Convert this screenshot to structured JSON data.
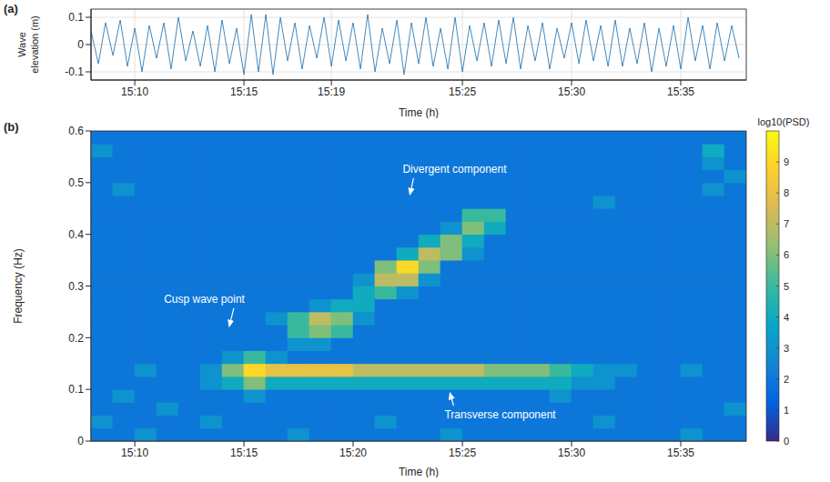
{
  "chart_data": [
    {
      "type": "line",
      "panel": "(a)",
      "x_label": "Time (h)",
      "y_label": "Wave elevation (m)",
      "color": "#2e7ab6",
      "grid": true,
      "xlim": [
        15.1333,
        15.6333
      ],
      "xticks": [
        {
          "value": 15.1667,
          "label": "15:10"
        },
        {
          "value": 15.25,
          "label": "15:15"
        },
        {
          "value": 15.3167,
          "label": "15:19"
        },
        {
          "value": 15.4167,
          "label": "15:25"
        },
        {
          "value": 15.5,
          "label": "15:30"
        },
        {
          "value": 15.5833,
          "label": "15:35"
        }
      ],
      "ylim": [
        -0.13,
        0.13
      ],
      "yticks": [
        -0.1,
        0,
        0.1
      ],
      "x": [
        15.1333,
        15.1389,
        15.1444,
        15.15,
        15.1556,
        15.1611,
        15.1667,
        15.1722,
        15.1778,
        15.1833,
        15.1889,
        15.1944,
        15.2,
        15.2056,
        15.2111,
        15.2167,
        15.2222,
        15.2278,
        15.2333,
        15.2389,
        15.2444,
        15.25,
        15.2556,
        15.2611,
        15.2667,
        15.2722,
        15.2778,
        15.2833,
        15.2889,
        15.2944,
        15.3,
        15.3056,
        15.3111,
        15.3167,
        15.3222,
        15.3278,
        15.3333,
        15.3389,
        15.3444,
        15.35,
        15.3556,
        15.3611,
        15.3667,
        15.3722,
        15.3778,
        15.3833,
        15.3889,
        15.3944,
        15.4,
        15.4056,
        15.4111,
        15.4167,
        15.4222,
        15.4278,
        15.4333,
        15.4389,
        15.4444,
        15.45,
        15.4556,
        15.4611,
        15.4667,
        15.4722,
        15.4778,
        15.4833,
        15.4889,
        15.4944,
        15.5,
        15.5056,
        15.5111,
        15.5167,
        15.5222,
        15.5278,
        15.5333,
        15.5389,
        15.5444,
        15.55,
        15.5556,
        15.5611,
        15.5667,
        15.5722,
        15.5778,
        15.5833,
        15.5889,
        15.5944,
        15.6,
        15.6056,
        15.6111,
        15.6167,
        15.6222,
        15.6278
      ],
      "values": [
        0.05,
        -0.07,
        0.08,
        -0.04,
        0.09,
        -0.08,
        0.06,
        -0.1,
        0.07,
        -0.05,
        0.08,
        -0.09,
        0.1,
        -0.06,
        0.05,
        -0.08,
        0.07,
        -0.1,
        0.09,
        -0.07,
        0.06,
        -0.11,
        0.11,
        -0.1,
        0.11,
        -0.11,
        0.1,
        -0.06,
        0.08,
        -0.09,
        0.07,
        -0.05,
        0.1,
        -0.08,
        0.09,
        -0.06,
        0.08,
        -0.09,
        0.11,
        -0.1,
        0.06,
        -0.07,
        0.09,
        -0.11,
        0.08,
        -0.07,
        0.1,
        -0.08,
        0.06,
        -0.09,
        0.1,
        -0.1,
        0.07,
        -0.06,
        0.08,
        -0.08,
        0.09,
        -0.07,
        0.1,
        -0.09,
        0.07,
        -0.06,
        0.08,
        -0.09,
        0.06,
        -0.05,
        0.08,
        -0.07,
        0.09,
        -0.06,
        0.07,
        -0.08,
        0.09,
        -0.08,
        0.06,
        -0.07,
        0.08,
        -0.1,
        0.06,
        -0.08,
        0.07,
        -0.09,
        0.1,
        -0.06,
        0.07,
        -0.09,
        0.08,
        -0.06,
        0.07,
        -0.05
      ]
    },
    {
      "type": "heatmap",
      "panel": "(b)",
      "x_label": "Time (h)",
      "y_label": "Frequency (Hz)",
      "xlim": [
        15.1333,
        15.6333
      ],
      "xticks": [
        {
          "value": 15.1667,
          "label": "15:10"
        },
        {
          "value": 15.25,
          "label": "15:15"
        },
        {
          "value": 15.3333,
          "label": "15:20"
        },
        {
          "value": 15.4167,
          "label": "15:25"
        },
        {
          "value": 15.5,
          "label": "15:30"
        },
        {
          "value": 15.5833,
          "label": "15:35"
        }
      ],
      "ylim": [
        0,
        0.6
      ],
      "yticks": [
        0,
        0.1,
        0.2,
        0.3,
        0.4,
        0.5,
        0.6
      ],
      "cells": {
        "x": [
          15.1417,
          15.1583,
          15.175,
          15.1917,
          15.2083,
          15.225,
          15.2417,
          15.2583,
          15.275,
          15.2917,
          15.3083,
          15.325,
          15.3417,
          15.3583,
          15.375,
          15.3917,
          15.4083,
          15.425,
          15.4417,
          15.4583,
          15.475,
          15.4917,
          15.5083,
          15.525,
          15.5417,
          15.5583,
          15.575,
          15.5917,
          15.6083,
          15.625
        ],
        "y": [
          0.0125,
          0.0375,
          0.0625,
          0.0875,
          0.1125,
          0.1375,
          0.1625,
          0.1875,
          0.2125,
          0.2375,
          0.2625,
          0.2875,
          0.3125,
          0.3375,
          0.3625,
          0.3875,
          0.4125,
          0.4375,
          0.4625,
          0.4875,
          0.5125,
          0.5375,
          0.5625,
          0.5875
        ],
        "values": [
          [
            2,
            2,
            3,
            2,
            2,
            2,
            2,
            2,
            2,
            3,
            2,
            2,
            2,
            2,
            2,
            2,
            3,
            2,
            2,
            2,
            2,
            2,
            2,
            2,
            2,
            2,
            2,
            3,
            2,
            2
          ],
          [
            3,
            2,
            2,
            2,
            2,
            3,
            2,
            2,
            2,
            2,
            2,
            2,
            2,
            3,
            2,
            2,
            2,
            2,
            2,
            2,
            2,
            2,
            2,
            3,
            2,
            2,
            2,
            2,
            2,
            2
          ],
          [
            2,
            2,
            2,
            3,
            2,
            2,
            2,
            2,
            2,
            2,
            2,
            2,
            2,
            2,
            2,
            2,
            2,
            2,
            2,
            2,
            2,
            2,
            2,
            2,
            2,
            2,
            2,
            2,
            2,
            3
          ],
          [
            2,
            3,
            2,
            2,
            2,
            2,
            2,
            3,
            2,
            2,
            2,
            2,
            2,
            2,
            2,
            2,
            2,
            2,
            2,
            2,
            2,
            3,
            2,
            2,
            2,
            2,
            2,
            2,
            2,
            2
          ],
          [
            2,
            2,
            2,
            2,
            2,
            3,
            4,
            6,
            4,
            4,
            4,
            4,
            4,
            4,
            4,
            4,
            4,
            4,
            4,
            4,
            4,
            4,
            3,
            3,
            2,
            2,
            2,
            2,
            2,
            2
          ],
          [
            2,
            2,
            3,
            2,
            2,
            3,
            6,
            9,
            8,
            8,
            8,
            8,
            7,
            7,
            7,
            7,
            7,
            7,
            6,
            6,
            6,
            5,
            4,
            3,
            3,
            2,
            2,
            3,
            2,
            2
          ],
          [
            2,
            2,
            2,
            2,
            2,
            2,
            3,
            5,
            3,
            2,
            2,
            2,
            2,
            2,
            2,
            2,
            2,
            2,
            2,
            2,
            2,
            2,
            2,
            2,
            2,
            2,
            2,
            2,
            2,
            2
          ],
          [
            2,
            2,
            2,
            2,
            2,
            2,
            2,
            2,
            2,
            3,
            3,
            2,
            2,
            2,
            2,
            2,
            2,
            2,
            2,
            2,
            2,
            2,
            2,
            2,
            2,
            2,
            2,
            2,
            2,
            2
          ],
          [
            2,
            2,
            2,
            2,
            2,
            2,
            2,
            2,
            2,
            5,
            6,
            5,
            2,
            2,
            2,
            2,
            2,
            2,
            2,
            2,
            2,
            2,
            2,
            2,
            2,
            2,
            2,
            2,
            2,
            2
          ],
          [
            2,
            2,
            2,
            2,
            2,
            2,
            2,
            2,
            3,
            5,
            7,
            6,
            3,
            2,
            2,
            2,
            2,
            2,
            2,
            2,
            2,
            2,
            2,
            2,
            2,
            2,
            2,
            2,
            2,
            2
          ],
          [
            2,
            2,
            2,
            2,
            2,
            2,
            2,
            2,
            2,
            2,
            3,
            4,
            4,
            2,
            2,
            2,
            2,
            2,
            2,
            2,
            2,
            2,
            2,
            2,
            2,
            2,
            2,
            2,
            2,
            2
          ],
          [
            2,
            2,
            2,
            2,
            2,
            2,
            2,
            2,
            2,
            2,
            2,
            2,
            4,
            5,
            3,
            2,
            2,
            2,
            2,
            2,
            2,
            2,
            2,
            2,
            2,
            2,
            2,
            2,
            2,
            2
          ],
          [
            2,
            2,
            2,
            2,
            2,
            2,
            2,
            2,
            2,
            2,
            2,
            2,
            3,
            7,
            7,
            3,
            2,
            2,
            2,
            2,
            2,
            2,
            2,
            2,
            2,
            2,
            2,
            2,
            2,
            2
          ],
          [
            2,
            2,
            2,
            2,
            2,
            2,
            2,
            2,
            2,
            2,
            2,
            2,
            2,
            6,
            9,
            6,
            2,
            2,
            2,
            2,
            2,
            2,
            2,
            2,
            2,
            2,
            2,
            2,
            2,
            2
          ],
          [
            2,
            2,
            2,
            2,
            2,
            2,
            2,
            2,
            2,
            2,
            2,
            2,
            2,
            2,
            4,
            7,
            6,
            3,
            2,
            2,
            2,
            2,
            2,
            2,
            2,
            2,
            2,
            2,
            2,
            2
          ],
          [
            2,
            2,
            2,
            2,
            2,
            2,
            2,
            2,
            2,
            2,
            2,
            2,
            2,
            2,
            2,
            4,
            6,
            4,
            2,
            2,
            2,
            2,
            2,
            2,
            2,
            2,
            2,
            2,
            2,
            2
          ],
          [
            2,
            2,
            2,
            2,
            2,
            2,
            2,
            2,
            2,
            2,
            2,
            2,
            2,
            2,
            2,
            2,
            3,
            6,
            4,
            2,
            2,
            2,
            2,
            2,
            2,
            2,
            2,
            2,
            2,
            2
          ],
          [
            2,
            2,
            2,
            2,
            2,
            2,
            2,
            2,
            2,
            2,
            2,
            2,
            2,
            2,
            2,
            2,
            2,
            5,
            5,
            2,
            2,
            2,
            2,
            2,
            2,
            2,
            2,
            2,
            2,
            2
          ],
          [
            2,
            2,
            2,
            2,
            2,
            2,
            2,
            2,
            2,
            2,
            2,
            2,
            2,
            2,
            2,
            2,
            2,
            2,
            2,
            2,
            2,
            2,
            2,
            3,
            2,
            2,
            2,
            2,
            2,
            2
          ],
          [
            2,
            3,
            2,
            2,
            2,
            2,
            2,
            2,
            2,
            2,
            2,
            2,
            2,
            2,
            2,
            2,
            2,
            2,
            2,
            2,
            2,
            2,
            2,
            2,
            2,
            2,
            2,
            2,
            3,
            2
          ],
          [
            2,
            2,
            2,
            2,
            2,
            2,
            2,
            2,
            2,
            2,
            2,
            2,
            2,
            2,
            2,
            2,
            2,
            2,
            2,
            2,
            2,
            2,
            2,
            2,
            2,
            2,
            2,
            2,
            2,
            3
          ],
          [
            2,
            2,
            2,
            2,
            2,
            2,
            2,
            2,
            2,
            2,
            2,
            2,
            2,
            2,
            2,
            2,
            2,
            2,
            2,
            2,
            2,
            2,
            2,
            2,
            2,
            2,
            2,
            2,
            3,
            2
          ],
          [
            3,
            2,
            2,
            2,
            2,
            2,
            2,
            2,
            2,
            2,
            2,
            2,
            2,
            2,
            2,
            2,
            2,
            2,
            2,
            2,
            2,
            2,
            2,
            2,
            2,
            2,
            2,
            2,
            4,
            2
          ],
          [
            2,
            2,
            2,
            2,
            2,
            2,
            2,
            2,
            2,
            2,
            2,
            2,
            2,
            2,
            2,
            2,
            2,
            2,
            2,
            2,
            2,
            2,
            2,
            2,
            2,
            2,
            2,
            2,
            2,
            2
          ]
        ]
      },
      "colorbar": {
        "label": "log10(PSD)",
        "range": [
          0,
          10
        ],
        "ticks": [
          0,
          1,
          2,
          3,
          4,
          5,
          6,
          7,
          8,
          9
        ]
      },
      "annotations": [
        {
          "text": "Cusp wave point",
          "x": [
            15.2367,
            15.27
          ],
          "y": [
            0.1,
            0.215
          ]
        },
        {
          "text": "Divergent component",
          "x": [
            15.27,
            15.4583
          ],
          "y": [
            0.17,
            0.47
          ]
        },
        {
          "text": "Transverse component",
          "x": [
            15.27,
            15.5083
          ],
          "y": [
            0.1,
            0.17
          ]
        }
      ]
    }
  ]
}
